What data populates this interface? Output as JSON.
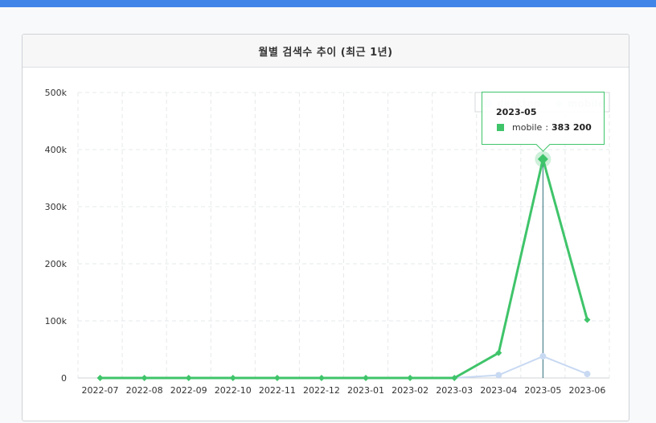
{
  "title": "월별 검색수 추이 (최근 1년)",
  "colors": {
    "topbar": "#4285e8",
    "desktop": "#c8d9f2",
    "mobile": "#3fc46a"
  },
  "chart_data": {
    "type": "line",
    "x": [
      "2022-07",
      "2022-08",
      "2022-09",
      "2022-10",
      "2022-11",
      "2022-12",
      "2023-01",
      "2023-02",
      "2023-03",
      "2023-04",
      "2023-05",
      "2023-06"
    ],
    "series": [
      {
        "name": "desktop",
        "values": [
          0,
          0,
          0,
          0,
          0,
          0,
          0,
          0,
          0,
          5000,
          38000,
          7000
        ]
      },
      {
        "name": "mobile",
        "values": [
          0,
          0,
          0,
          0,
          0,
          0,
          0,
          0,
          0,
          44000,
          383200,
          102000
        ]
      }
    ],
    "ylim": [
      0,
      500000
    ],
    "yticks": [
      "0",
      "100k",
      "200k",
      "300k",
      "400k",
      "500k"
    ],
    "grid": true,
    "legend": "top-right",
    "highlight": {
      "category": "2023-05",
      "series": "mobile"
    }
  },
  "tooltip": {
    "title": "2023-05",
    "series_name": "mobile",
    "separator": ":",
    "value": "383 200"
  }
}
